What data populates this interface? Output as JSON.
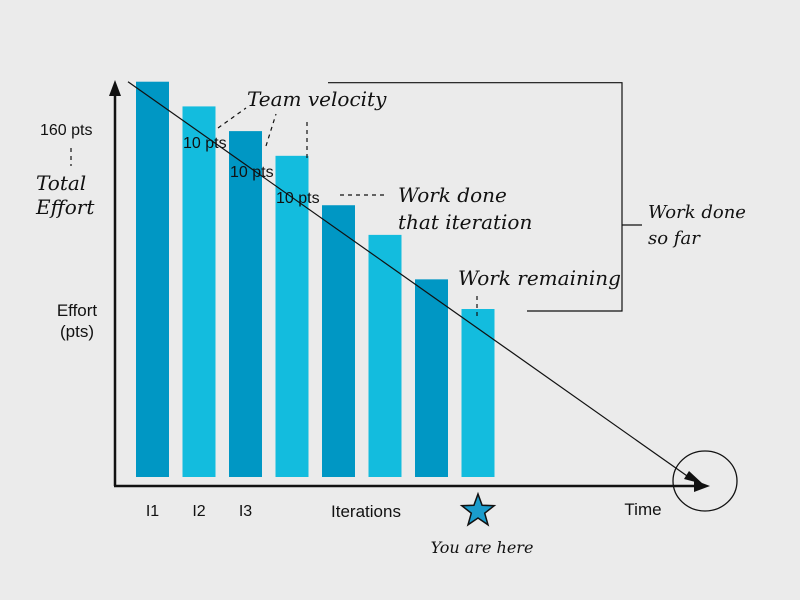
{
  "chart_data": {
    "type": "bar",
    "title": "",
    "categories": [
      "I1",
      "I2",
      "I3",
      "",
      "",
      "",
      "",
      ""
    ],
    "values": [
      160,
      150,
      140,
      130,
      110,
      98,
      80,
      68
    ],
    "ylim": [
      0,
      170
    ],
    "xlabel": "Iterations",
    "ylabel_lines": [
      "Effort",
      "(pts)"
    ],
    "x_end_label": "Time",
    "grid": false,
    "bar_colors": [
      "#0097c4",
      "#13bcde",
      "#0097c4",
      "#13bcde",
      "#0097c4",
      "#13bcde",
      "#0097c4",
      "#13bcde"
    ],
    "trend_line": "straight line from top of first bar to x-axis near Time (circled)",
    "data_labels": {
      "total": "160 pts",
      "velocity": [
        "10 pts",
        "10 pts",
        "10 pts"
      ]
    },
    "annotations": {
      "total_effort": [
        "Total",
        "Effort"
      ],
      "team_velocity": "Team velocity",
      "work_done_iteration": [
        "Work done",
        "that iteration"
      ],
      "work_done_so_far": [
        "Work done",
        "so far"
      ],
      "work_remaining": "Work remaining",
      "you_are_here": "You are here"
    },
    "marker": "star under 8th bar",
    "colors": {
      "dark_bar": "#0097c4",
      "light_bar": "#13bcde",
      "star": "#1a9ccc",
      "axis": "#111111"
    }
  }
}
